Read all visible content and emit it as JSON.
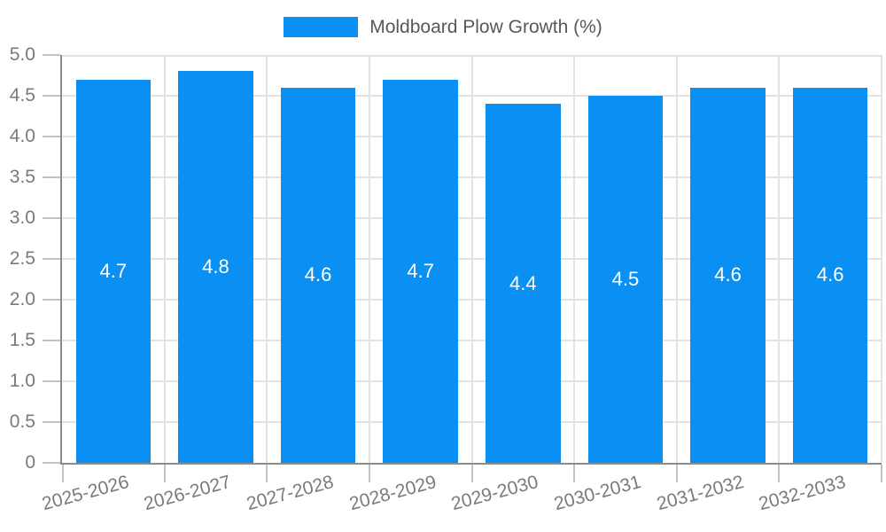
{
  "chart_data": {
    "type": "bar",
    "title": "",
    "xlabel": "",
    "ylabel": "",
    "categories": [
      "2025-2026",
      "2026-2027",
      "2027-2028",
      "2028-2029",
      "2029-2030",
      "2030-2031",
      "2031-2032",
      "2032-2033"
    ],
    "series": [
      {
        "name": "Moldboard Plow Growth (%)",
        "values": [
          4.7,
          4.8,
          4.6,
          4.7,
          4.4,
          4.5,
          4.6,
          4.6
        ]
      }
    ],
    "value_labels": [
      "4.7",
      "4.8",
      "4.6",
      "4.7",
      "4.4",
      "4.5",
      "4.6",
      "4.6"
    ],
    "ylim": [
      0,
      5.0
    ],
    "ytick_step": 0.5,
    "ytick_labels": [
      "0",
      "0.5",
      "1.0",
      "1.5",
      "2.0",
      "2.5",
      "3.0",
      "3.5",
      "4.0",
      "4.5",
      "5.0"
    ],
    "grid": true,
    "legend_position": "top-center",
    "xtick_label_rotation_deg": -15,
    "colors": {
      "bar": "#0990F2",
      "grid_line": "#e3e3e3",
      "axis_line": "#8c8c8c",
      "tick_mark": "#c2c2c2",
      "tick_label": "#7a7a7a",
      "legend_text": "#57585a",
      "value_label": "#ffffff"
    }
  }
}
